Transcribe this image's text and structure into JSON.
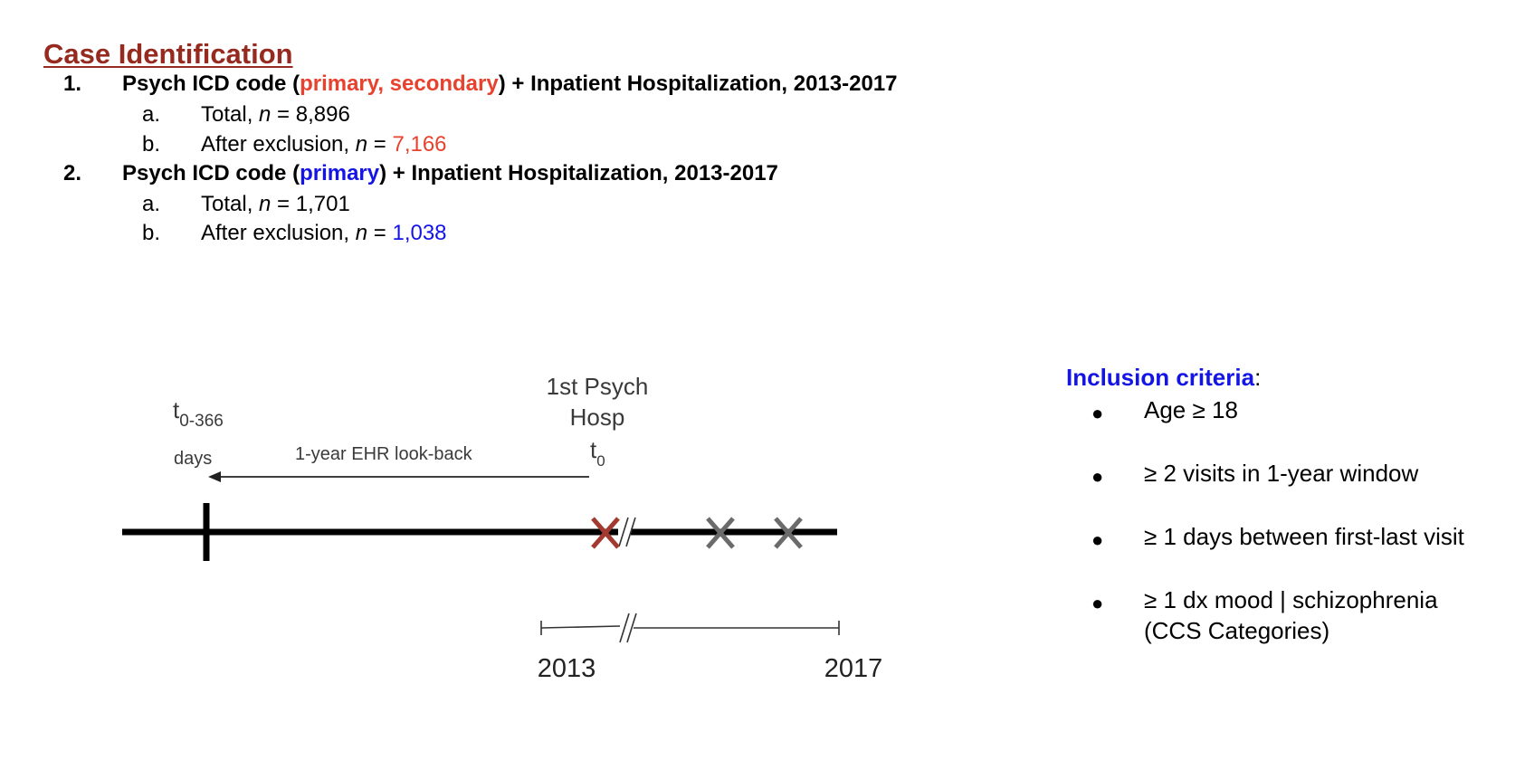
{
  "section": {
    "title": "Case Identification",
    "title_color": "#962a1f"
  },
  "items": [
    {
      "number": "1.",
      "prefix": "Psych ICD code (",
      "highlight": "primary, secondary",
      "suffix": ") + Inpatient Hospitalization, 2013-2017",
      "highlight_color": "#e8412e",
      "subs": [
        {
          "letter": "a.",
          "text": "Total, ",
          "n_label": "n",
          "eq": " = ",
          "value": "8,896",
          "value_colored": false
        },
        {
          "letter": "b.",
          "text": "After exclusion, ",
          "n_label": "n",
          "eq": " = ",
          "value": "7,166",
          "value_colored": true
        }
      ]
    },
    {
      "number": "2.",
      "prefix": "Psych ICD code (",
      "highlight": "primary",
      "suffix": ") + Inpatient Hospitalization, 2013-2017",
      "highlight_color": "#1414e6",
      "subs": [
        {
          "letter": "a.",
          "text": "Total, ",
          "n_label": "n",
          "eq": " = ",
          "value": "1,701",
          "value_colored": false
        },
        {
          "letter": "b.",
          "text": "After exclusion, ",
          "n_label": "n",
          "eq": " = ",
          "value": "1,038",
          "value_colored": true
        }
      ]
    }
  ],
  "diagram": {
    "hosp_label_line1": "1st Psych",
    "hosp_label_line2": "Hosp",
    "t0_main": "t",
    "t0_sub": "0",
    "start_main": "t",
    "start_sub": "0-366",
    "days_label": "days",
    "lookback_label": "1-year EHR look-back",
    "year_start": "2013",
    "year_end": "2017",
    "first_marker_color": "#a33a30",
    "other_marker_color": "#6b6b6b"
  },
  "criteria": {
    "title": "Inclusion criteria",
    "colon": ":",
    "bullet_char": "●",
    "items": [
      "Age ≥ 18",
      "≥ 2 visits in 1-year window",
      "≥ 1 days between first-last visit",
      "≥ 1 dx mood | schizophrenia (CCS Categories)"
    ]
  }
}
